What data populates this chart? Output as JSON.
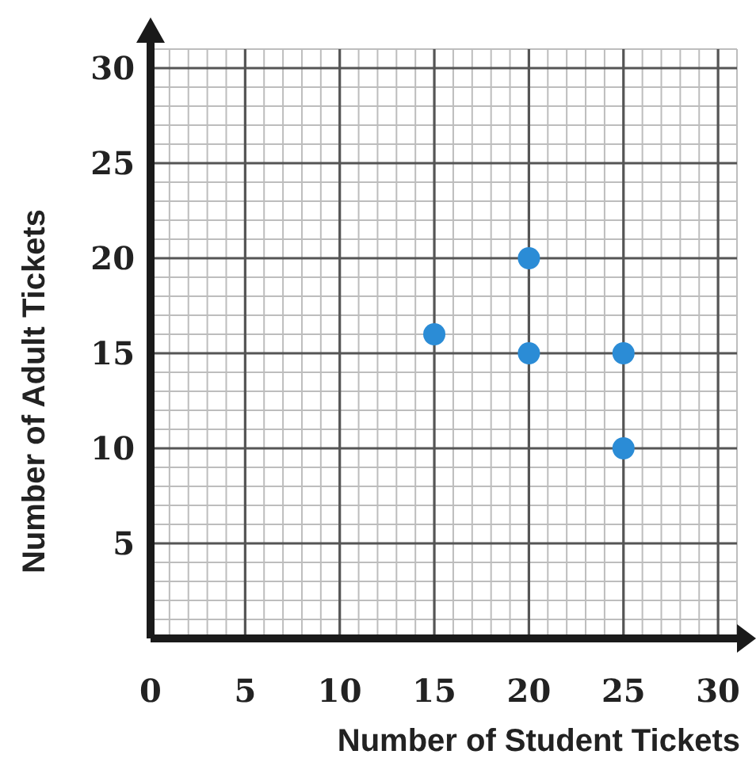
{
  "chart_data": {
    "type": "scatter",
    "xlabel": "Number of Student Tickets",
    "ylabel": "Number of Adult Tickets",
    "x": [
      15,
      20,
      20,
      25,
      25
    ],
    "values": [
      16,
      20,
      15,
      15,
      10
    ],
    "color": "#2b8cd6",
    "marker": "circle",
    "xlim": [
      0,
      31
    ],
    "ylim": [
      0,
      31
    ],
    "xticks": [
      0,
      5,
      10,
      15,
      20,
      25,
      30
    ],
    "yticks": [
      5,
      10,
      15,
      20,
      25,
      30
    ],
    "grid": true
  }
}
